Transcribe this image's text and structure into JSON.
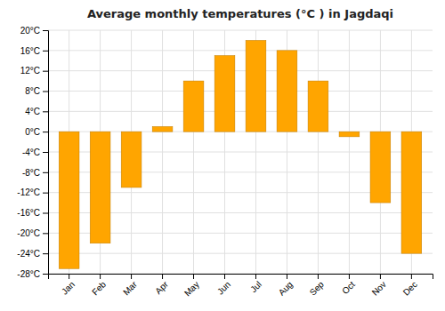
{
  "chart_data": {
    "type": "bar",
    "title": "Average monthly temperatures (°C ) in Jagdaqi",
    "categories": [
      "Jan",
      "Feb",
      "Mar",
      "Apr",
      "May",
      "Jun",
      "Jul",
      "Aug",
      "Sep",
      "Oct",
      "Nov",
      "Dec"
    ],
    "values": [
      -27,
      -22,
      -11,
      1,
      10,
      15,
      18,
      16,
      10,
      -1,
      -14,
      -24
    ],
    "color": "#FFA500",
    "ylim": [
      -28,
      20
    ],
    "yticks": [
      {
        "value": -28,
        "label": "-28°C"
      },
      {
        "value": -24,
        "label": "-24°C"
      },
      {
        "value": -20,
        "label": "-20°C"
      },
      {
        "value": -16,
        "label": "-16°C"
      },
      {
        "value": -12,
        "label": "-12°C"
      },
      {
        "value": -8,
        "label": "-8°C"
      },
      {
        "value": -4,
        "label": "-4°C"
      },
      {
        "value": 0,
        "label": "0°C"
      },
      {
        "value": 4,
        "label": "4°C"
      },
      {
        "value": 8,
        "label": "8°C"
      },
      {
        "value": 12,
        "label": "12°C"
      },
      {
        "value": 16,
        "label": "16°C"
      },
      {
        "value": 20,
        "label": "20°C"
      }
    ],
    "grid": true
  }
}
